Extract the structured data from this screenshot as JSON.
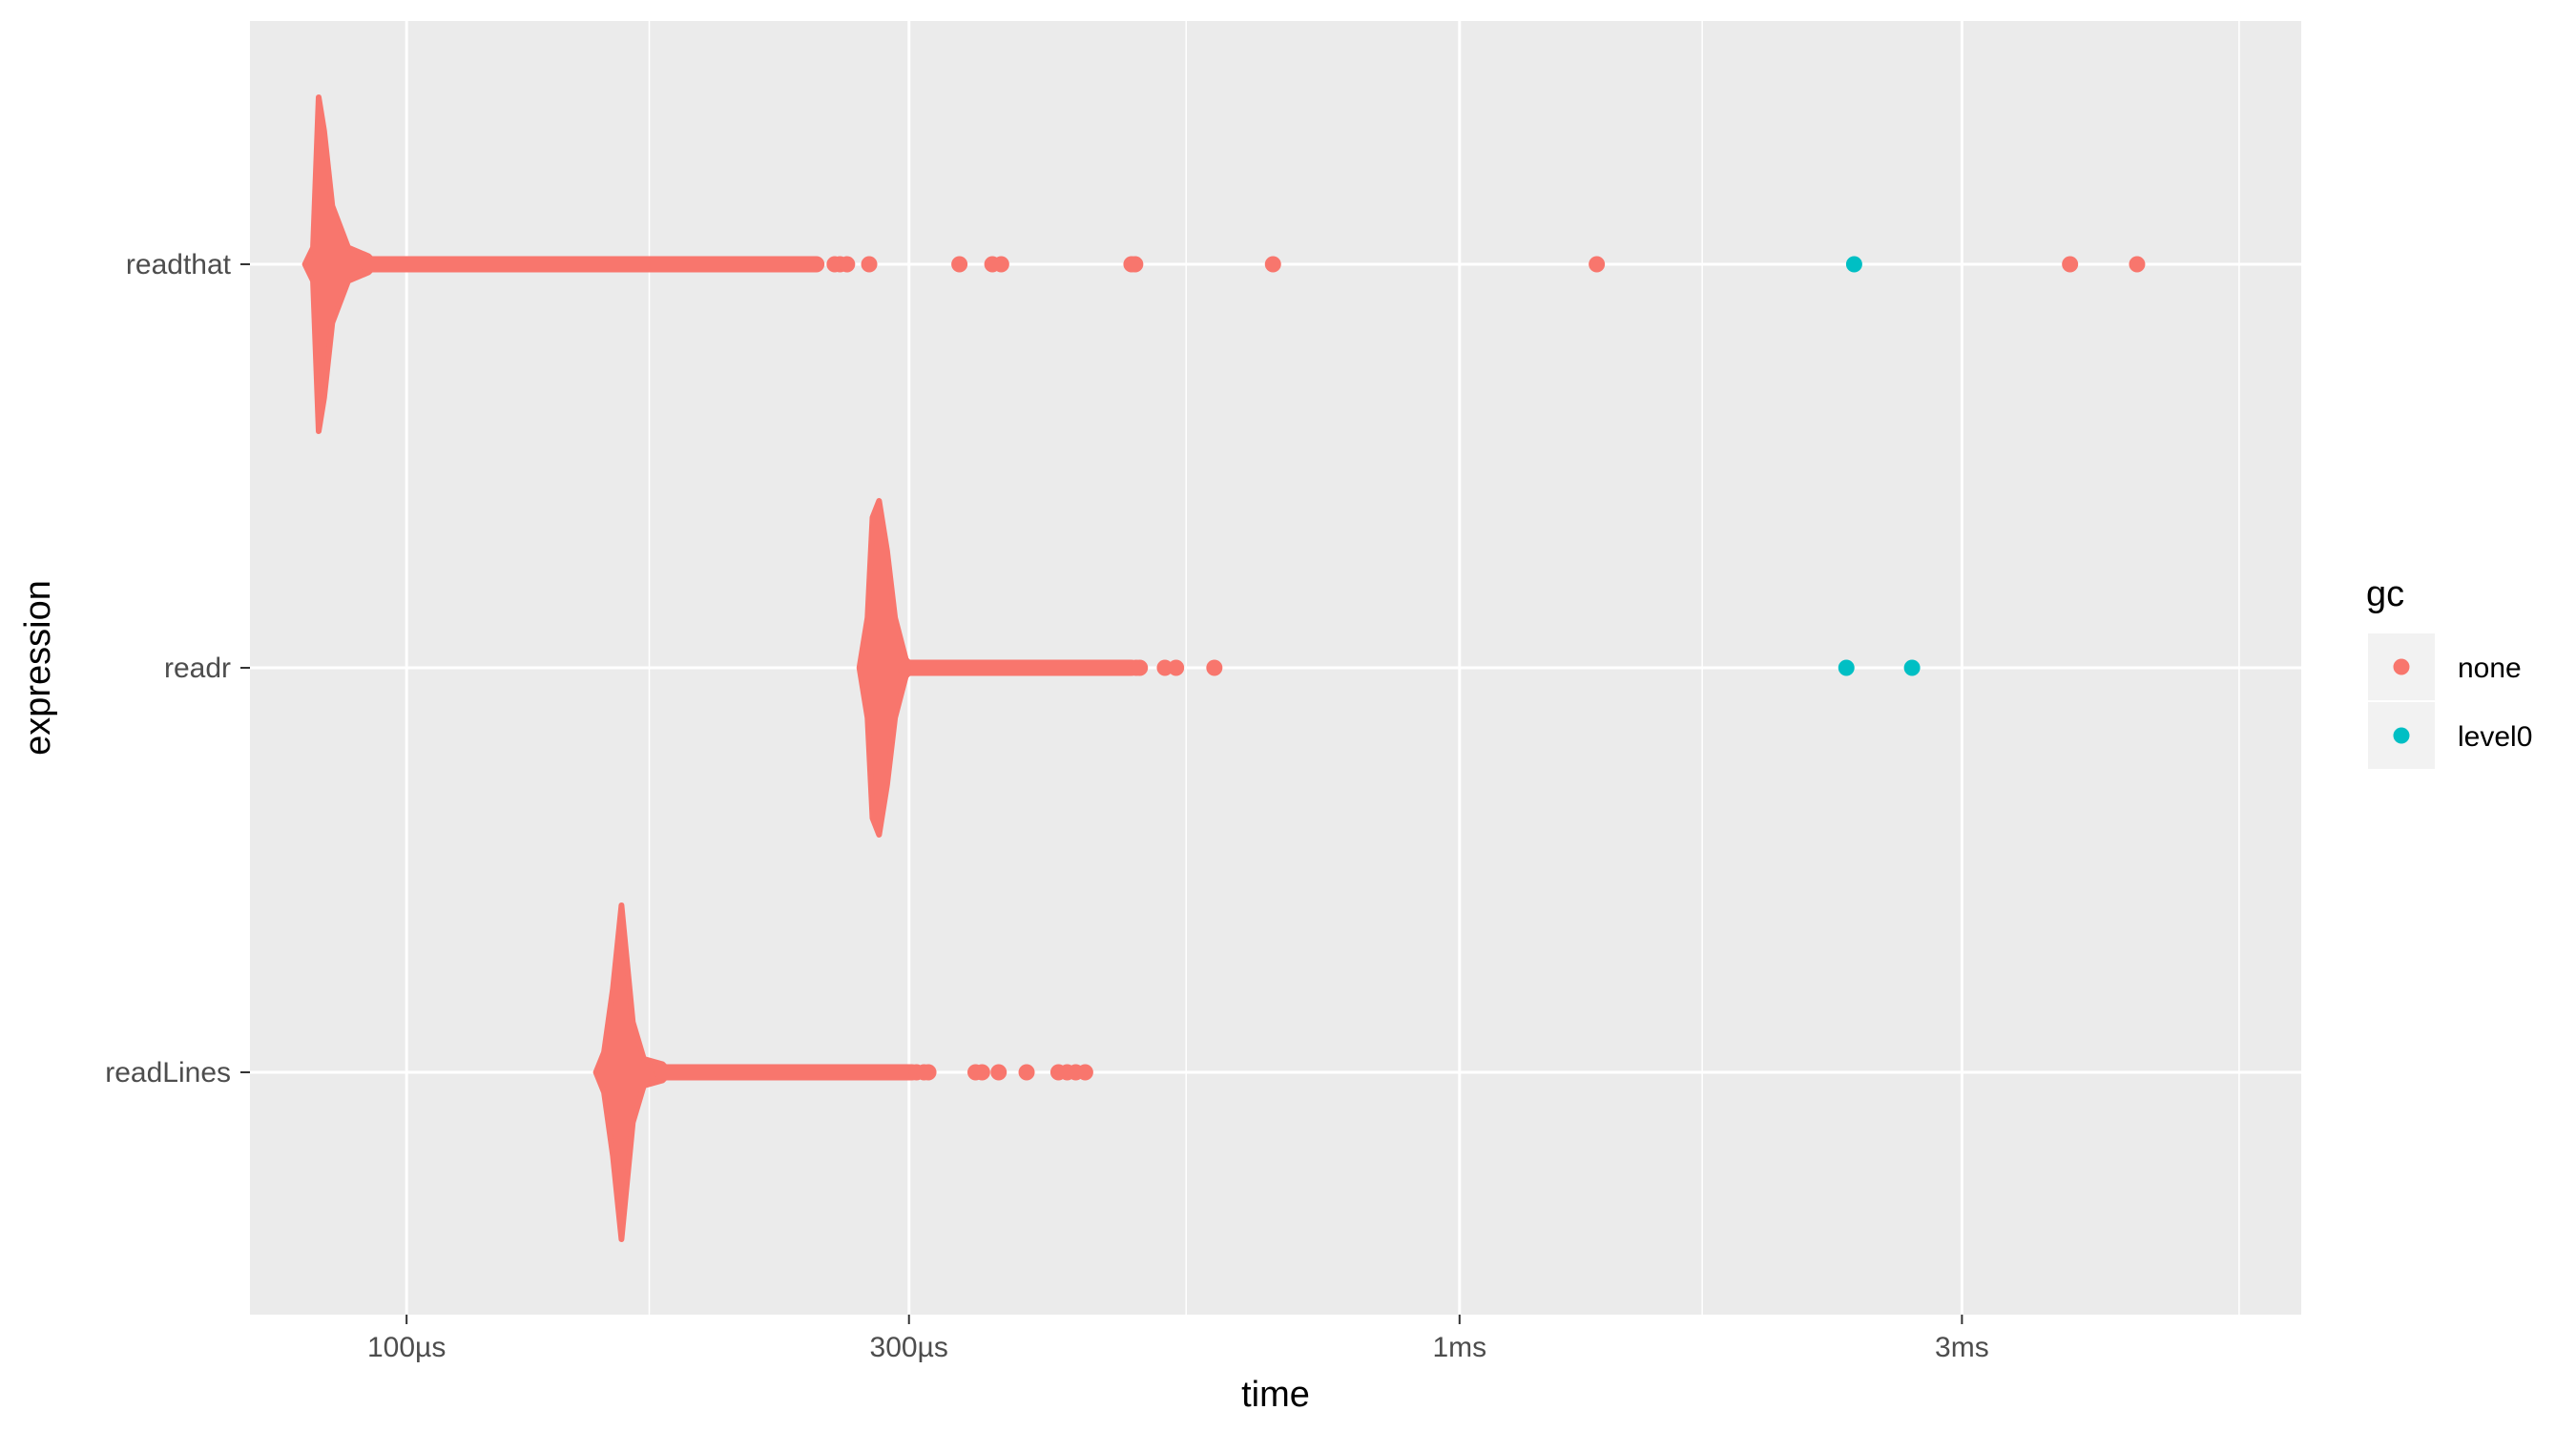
{
  "chart_data": {
    "type": "scatter",
    "xlabel": "time",
    "ylabel": "expression",
    "x_scale": "log10",
    "x_unit": "seconds",
    "xlim": [
      7.1e-05,
      0.0063
    ],
    "x_ticks": [
      {
        "value": 0.0001,
        "label": "100µs"
      },
      {
        "value": 0.0003,
        "label": "300µs"
      },
      {
        "value": 0.001,
        "label": "1ms"
      },
      {
        "value": 0.003,
        "label": "3ms"
      }
    ],
    "x_minor_ticks": [
      0.00017,
      0.00055,
      0.0017,
      0.0055
    ],
    "categories": [
      "readthat",
      "readr",
      "readLines"
    ],
    "grid": true,
    "legend": {
      "title": "gc",
      "position": "right",
      "entries": [
        {
          "label": "none",
          "color": "#F8766D"
        },
        {
          "label": "level0",
          "color": "#00BFC4"
        }
      ]
    },
    "series": [
      {
        "category": "readthat",
        "violin": {
          "x": [
            8.15e-05,
            8.25e-05,
            8.35e-05,
            8.5e-05,
            8.8e-05,
            9.2e-05
          ],
          "halfwidth": [
            0.1,
            1.0,
            0.8,
            0.35,
            0.1,
            0.03
          ]
        },
        "tail_x_range": [
          9.2e-05,
          0.000245
        ],
        "points": [
          {
            "x": 0.000255,
            "gc": "none"
          },
          {
            "x": 0.000258,
            "gc": "none"
          },
          {
            "x": 0.000262,
            "gc": "none"
          },
          {
            "x": 0.000275,
            "gc": "none"
          },
          {
            "x": 0.000335,
            "gc": "none"
          },
          {
            "x": 0.00036,
            "gc": "none"
          },
          {
            "x": 0.000367,
            "gc": "none"
          },
          {
            "x": 0.000488,
            "gc": "none"
          },
          {
            "x": 0.000492,
            "gc": "none"
          },
          {
            "x": 0.000665,
            "gc": "none"
          },
          {
            "x": 0.00135,
            "gc": "none"
          },
          {
            "x": 0.00237,
            "gc": "level0"
          },
          {
            "x": 0.0038,
            "gc": "none"
          },
          {
            "x": 0.0044,
            "gc": "none"
          }
        ]
      },
      {
        "category": "readr",
        "violin": {
          "x": [
            0.000274,
            0.000277,
            0.000281,
            0.000286,
            0.000291,
            0.000298
          ],
          "halfwidth": [
            0.3,
            0.9,
            1.0,
            0.7,
            0.3,
            0.05
          ]
        },
        "tail_x_range": [
          0.000298,
          0.000488
        ],
        "points": [
          {
            "x": 0.000493,
            "gc": "none"
          },
          {
            "x": 0.000497,
            "gc": "none"
          },
          {
            "x": 0.000525,
            "gc": "none"
          },
          {
            "x": 0.000538,
            "gc": "none"
          },
          {
            "x": 0.000585,
            "gc": "none"
          },
          {
            "x": 0.00233,
            "gc": "level0"
          },
          {
            "x": 0.00269,
            "gc": "level0"
          }
        ]
      },
      {
        "category": "readLines",
        "violin": {
          "x": [
            0.000154,
            0.000157,
            0.00016,
            0.000164,
            0.000168,
            0.000175
          ],
          "halfwidth": [
            0.12,
            0.5,
            1.0,
            0.3,
            0.08,
            0.03
          ]
        },
        "tail_x_range": [
          0.000175,
          0.000302
        ],
        "points": [
          {
            "x": 0.000305,
            "gc": "none"
          },
          {
            "x": 0.00031,
            "gc": "none"
          },
          {
            "x": 0.000313,
            "gc": "none"
          },
          {
            "x": 0.000347,
            "gc": "none"
          },
          {
            "x": 0.000352,
            "gc": "none"
          },
          {
            "x": 0.000365,
            "gc": "none"
          },
          {
            "x": 0.000388,
            "gc": "none"
          },
          {
            "x": 0.000416,
            "gc": "none"
          },
          {
            "x": 0.000424,
            "gc": "none"
          },
          {
            "x": 0.000432,
            "gc": "none"
          },
          {
            "x": 0.000441,
            "gc": "none"
          }
        ]
      }
    ]
  }
}
